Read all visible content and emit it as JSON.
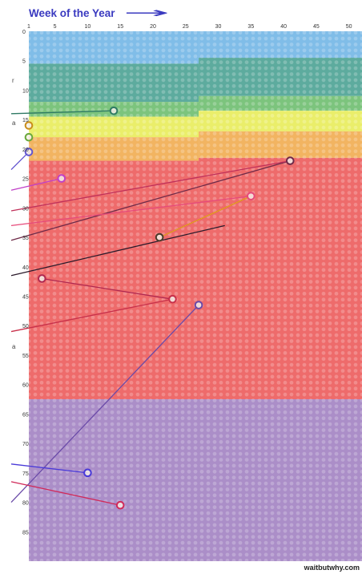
{
  "chart_data": {
    "type": "scatter",
    "title": "Week of the Year",
    "title_arrow": "→",
    "xlim": [
      1,
      52
    ],
    "ylim": [
      0,
      90
    ],
    "x_ticks": [
      "1",
      "5",
      "10",
      "15",
      "20",
      "25",
      "30",
      "35",
      "40",
      "45",
      "50"
    ],
    "y_ticks": [
      "0",
      "5",
      "10",
      "15",
      "20",
      "25",
      "30",
      "35",
      "40",
      "45",
      "50",
      "55",
      "60",
      "65",
      "70",
      "75",
      "80",
      "85"
    ],
    "grid": "dotted weeks grid",
    "bands": [
      {
        "color": "#80bde8",
        "segments": [
          {
            "x_from": 1,
            "x_to": 27,
            "y_from": 0,
            "y_to": 5.5
          },
          {
            "x_from": 27,
            "x_to": 52,
            "y_from": 0,
            "y_to": 4.5
          }
        ]
      },
      {
        "color": "#5dab9e",
        "segments": [
          {
            "x_from": 1,
            "x_to": 27,
            "y_from": 5.5,
            "y_to": 12
          },
          {
            "x_from": 27,
            "x_to": 52,
            "y_from": 4.5,
            "y_to": 11
          }
        ]
      },
      {
        "color": "#7cc47d",
        "segments": [
          {
            "x_from": 1,
            "x_to": 27,
            "y_from": 12,
            "y_to": 14.5
          },
          {
            "x_from": 27,
            "x_to": 52,
            "y_from": 11,
            "y_to": 13.5
          }
        ]
      },
      {
        "color": "#eaee6a",
        "segments": [
          {
            "x_from": 1,
            "x_to": 27,
            "y_from": 14.5,
            "y_to": 18
          },
          {
            "x_from": 27,
            "x_to": 52,
            "y_from": 13.5,
            "y_to": 17
          }
        ]
      },
      {
        "color": "#f2b461",
        "segments": [
          {
            "x_from": 1,
            "x_to": 27,
            "y_from": 18,
            "y_to": 22
          },
          {
            "x_from": 27,
            "x_to": 52,
            "y_from": 17,
            "y_to": 21.5
          }
        ]
      },
      {
        "color": "#ee6b6b",
        "segments": [
          {
            "x_from": 1,
            "x_to": 27,
            "y_from": 22,
            "y_to": 62.5
          },
          {
            "x_from": 27,
            "x_to": 52,
            "y_from": 21.5,
            "y_to": 62.5
          }
        ]
      },
      {
        "color": "#ab8ec8",
        "segments": [
          {
            "x_from": 1,
            "x_to": 52,
            "y_from": 62.5,
            "y_to": 90
          }
        ]
      }
    ],
    "markers": [
      {
        "x": 14,
        "y": 13.5,
        "color": "#2f7a64",
        "line_to": [
          -1,
          14.0
        ]
      },
      {
        "x": 1,
        "y": 16,
        "color": "#c98d1a",
        "line_to": null
      },
      {
        "x": 1,
        "y": 18,
        "color": "#6aa83b",
        "line_to": null
      },
      {
        "x": 1,
        "y": 20.5,
        "color": "#6255d0",
        "line_to": [
          -1,
          23.5
        ]
      },
      {
        "x": 6,
        "y": 25,
        "color": "#c040c8",
        "line_to": [
          -1,
          27.0
        ]
      },
      {
        "x": 41,
        "y": 22,
        "color": "#6e2a48",
        "line_to": [
          -1,
          35.5
        ]
      },
      {
        "x": 35,
        "y": 28,
        "color": "#e64a7a",
        "line_to": [
          -1,
          33.0
        ]
      },
      {
        "x": 21,
        "y": 35,
        "color": "#4a3a2a",
        "line_to": [
          35,
          28
        ]
      },
      {
        "x": 3,
        "y": 42,
        "color": "#b02850",
        "line_to": [
          23,
          45.5
        ]
      },
      {
        "x": 23,
        "y": 45.5,
        "color": "#c8304a",
        "line_to": [
          -1,
          51.0
        ]
      },
      {
        "x": 27,
        "y": 46.5,
        "color": "#6a4aa8",
        "line_to": [
          -1,
          80.0
        ]
      },
      {
        "x": 10,
        "y": 75,
        "color": "#4a3ad8",
        "line_to": [
          -1,
          73.5
        ]
      },
      {
        "x": 15,
        "y": 80.5,
        "color": "#d02a5a",
        "line_to": [
          -1,
          76.5
        ]
      }
    ],
    "extra_lines": [
      {
        "from": [
          -1,
          30.5
        ],
        "to": [
          41,
          22
        ],
        "color": "#c0305a"
      },
      {
        "from": [
          -1,
          41.5
        ],
        "to": [
          31,
          33
        ],
        "color": "#2a1a2a"
      },
      {
        "from": [
          21,
          35
        ],
        "to": [
          35,
          28
        ],
        "color": "#f0a020"
      }
    ],
    "y_side_glyphs": [
      {
        "y": 8.3,
        "text": "r"
      },
      {
        "y": 15.5,
        "text": "a"
      },
      {
        "y": 53.5,
        "text": "a"
      }
    ]
  },
  "credit": "waitbutwhy.com"
}
